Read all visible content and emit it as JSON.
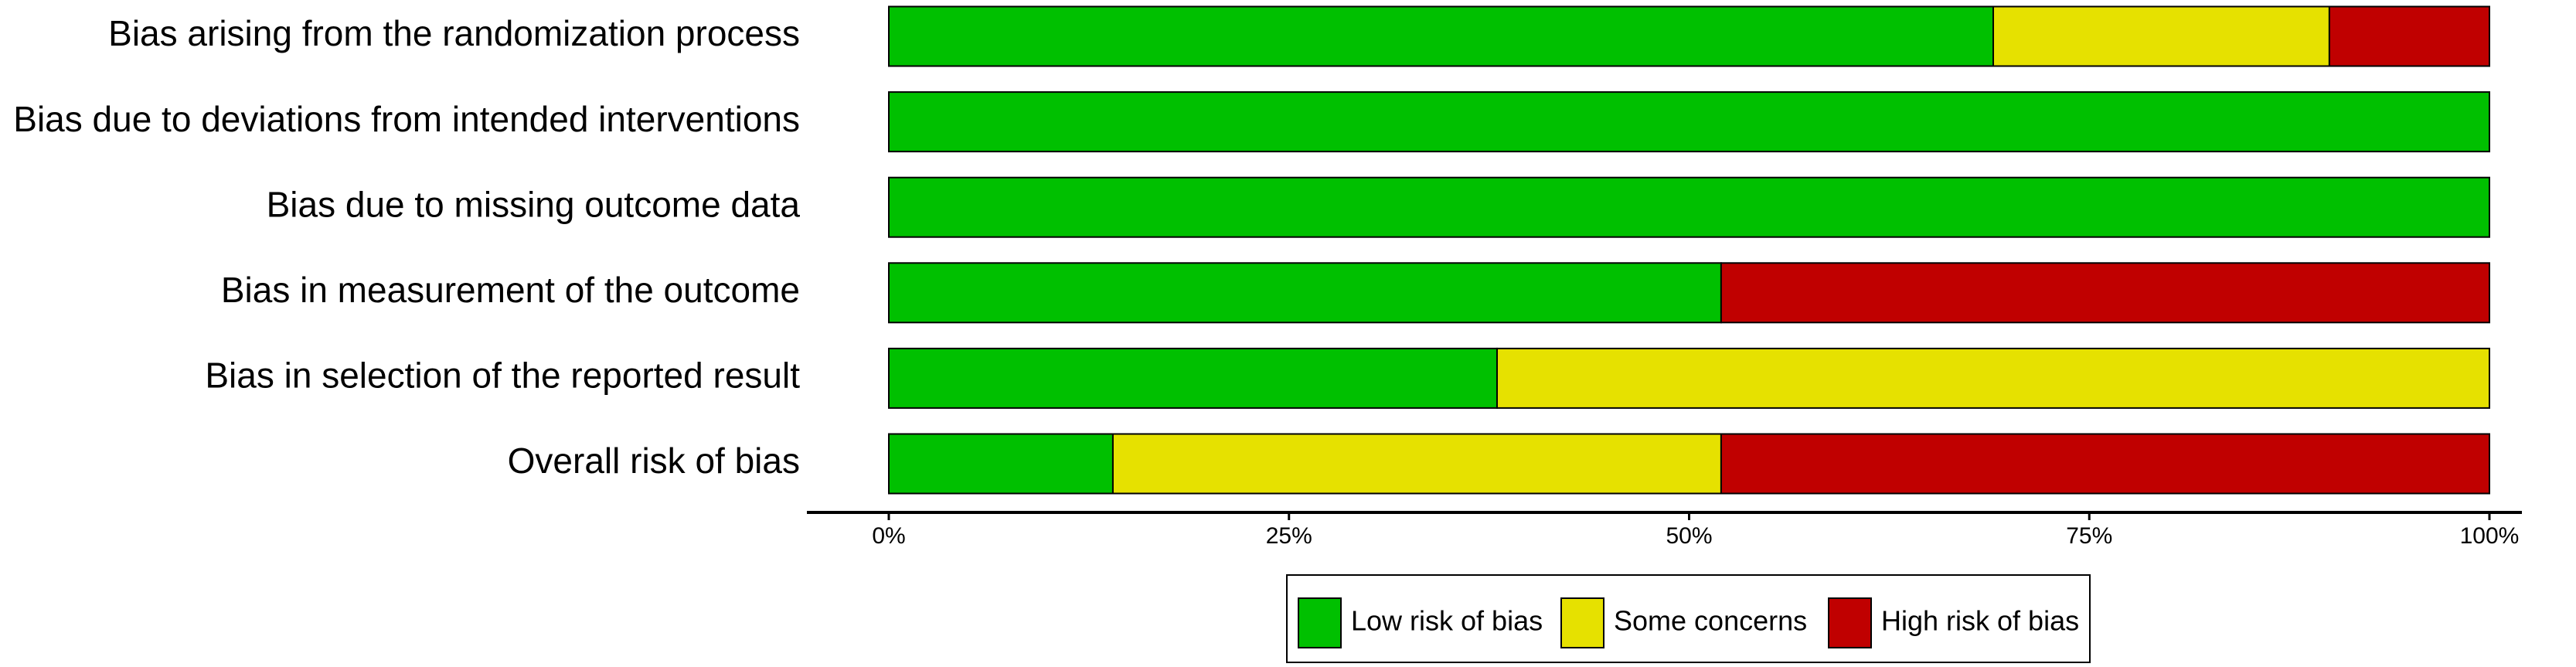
{
  "chart_data": {
    "type": "stacked-barh",
    "categories": [
      "Bias arising from the randomization process",
      "Bias due to deviations from intended interventions",
      "Bias due to missing outcome data",
      "Bias in measurement of the outcome",
      "Bias in selection of the reported result",
      "Overall risk of bias"
    ],
    "series": [
      {
        "name": "Low risk of bias",
        "color": "#00c000",
        "values": [
          69,
          100,
          100,
          52,
          38,
          14
        ]
      },
      {
        "name": "Some concerns",
        "color": "#e6e100",
        "values": [
          21,
          0,
          0,
          0,
          62,
          38
        ]
      },
      {
        "name": "High risk of bias",
        "color": "#c00000",
        "values": [
          10,
          0,
          0,
          48,
          0,
          48
        ]
      }
    ],
    "xlim": [
      0,
      100
    ],
    "xticks": [
      {
        "value": 0,
        "label": "0%"
      },
      {
        "value": 25,
        "label": "25%"
      },
      {
        "value": 50,
        "label": "50%"
      },
      {
        "value": 75,
        "label": "75%"
      },
      {
        "value": 100,
        "label": "100%"
      }
    ],
    "legend": "bottom"
  }
}
